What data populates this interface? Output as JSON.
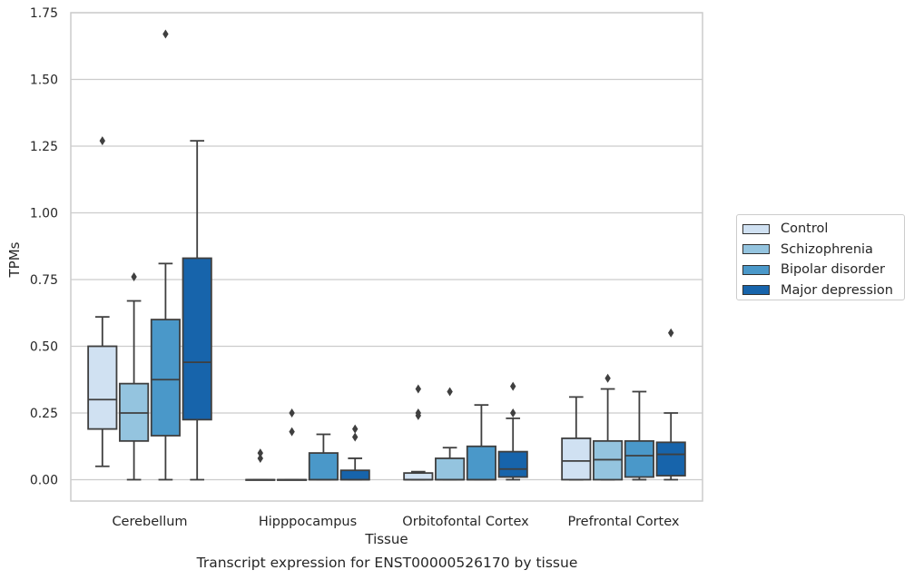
{
  "chart_data": {
    "type": "boxplot",
    "title": "",
    "caption": "Transcript expression for ENST00000526170 by tissue",
    "xlabel": "Tissue",
    "ylabel": "TPMs",
    "ylim": [
      -0.08,
      1.75
    ],
    "yticks": [
      "0.00",
      "0.25",
      "0.50",
      "0.75",
      "1.00",
      "1.25",
      "1.50",
      "1.75"
    ],
    "ytick_values": [
      0,
      0.25,
      0.5,
      0.75,
      1.0,
      1.25,
      1.5,
      1.75
    ],
    "grid": "horizontal",
    "legend_position": "right",
    "categories": [
      "Cerebellum",
      "Hipppocampus",
      "Orbitofontal Cortex",
      "Prefrontal Cortex"
    ],
    "series": [
      {
        "name": "Control",
        "color": "#d0e1f2",
        "boxes": [
          {
            "whislo": 0.05,
            "q1": 0.19,
            "med": 0.3,
            "q3": 0.5,
            "whishi": 0.61,
            "fliers": [
              1.27
            ]
          },
          {
            "whislo": 0,
            "q1": 0,
            "med": 0,
            "q3": 0,
            "whishi": 0,
            "fliers": [
              0.08,
              0.1
            ]
          },
          {
            "whislo": 0,
            "q1": 0,
            "med": 0,
            "q3": 0.025,
            "whishi": 0.03,
            "fliers": [
              0.24,
              0.25,
              0.34
            ]
          },
          {
            "whislo": 0,
            "q1": 0,
            "med": 0.07,
            "q3": 0.155,
            "whishi": 0.31,
            "fliers": []
          }
        ]
      },
      {
        "name": "Schizophrenia",
        "color": "#94c4df",
        "boxes": [
          {
            "whislo": 0,
            "q1": 0.145,
            "med": 0.25,
            "q3": 0.36,
            "whishi": 0.67,
            "fliers": [
              0.76
            ]
          },
          {
            "whislo": 0,
            "q1": 0,
            "med": 0,
            "q3": 0,
            "whishi": 0,
            "fliers": [
              0.18,
              0.25
            ]
          },
          {
            "whislo": 0,
            "q1": 0,
            "med": 0,
            "q3": 0.08,
            "whishi": 0.12,
            "fliers": [
              0.33
            ]
          },
          {
            "whislo": 0,
            "q1": 0,
            "med": 0.075,
            "q3": 0.145,
            "whishi": 0.34,
            "fliers": [
              0.38
            ]
          }
        ]
      },
      {
        "name": "Bipolar disorder",
        "color": "#4a98c9",
        "boxes": [
          {
            "whislo": 0,
            "q1": 0.165,
            "med": 0.375,
            "q3": 0.6,
            "whishi": 0.81,
            "fliers": [
              1.67
            ]
          },
          {
            "whislo": 0,
            "q1": 0,
            "med": 0,
            "q3": 0.1,
            "whishi": 0.17,
            "fliers": []
          },
          {
            "whislo": 0,
            "q1": 0,
            "med": 0,
            "q3": 0.125,
            "whishi": 0.28,
            "fliers": []
          },
          {
            "whislo": 0,
            "q1": 0.01,
            "med": 0.09,
            "q3": 0.145,
            "whishi": 0.33,
            "fliers": []
          }
        ]
      },
      {
        "name": "Major depression",
        "color": "#1764ab",
        "boxes": [
          {
            "whislo": 0,
            "q1": 0.225,
            "med": 0.44,
            "q3": 0.83,
            "whishi": 1.27,
            "fliers": []
          },
          {
            "whislo": 0,
            "q1": 0,
            "med": 0,
            "q3": 0.035,
            "whishi": 0.08,
            "fliers": [
              0.16,
              0.19
            ]
          },
          {
            "whislo": 0,
            "q1": 0.01,
            "med": 0.04,
            "q3": 0.105,
            "whishi": 0.23,
            "fliers": [
              0.25,
              0.35
            ]
          },
          {
            "whislo": 0,
            "q1": 0.015,
            "med": 0.095,
            "q3": 0.14,
            "whishi": 0.25,
            "fliers": [
              0.55
            ]
          }
        ]
      }
    ]
  }
}
